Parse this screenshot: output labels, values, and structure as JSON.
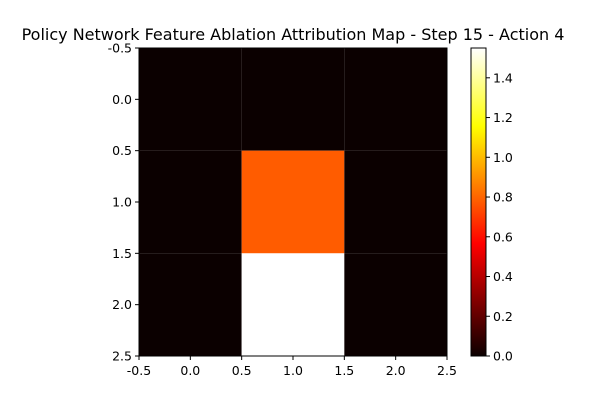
{
  "chart_data": {
    "type": "heatmap",
    "title": "Policy Network Feature Ablation Attribution Map - Step 15 - Action 4",
    "xlabel": "",
    "ylabel": "",
    "xlim": [
      -0.5,
      2.5
    ],
    "ylim": [
      2.5,
      -0.5
    ],
    "x_ticks": [
      "-0.5",
      "0.0",
      "0.5",
      "1.0",
      "1.5",
      "2.0",
      "2.5"
    ],
    "y_ticks": [
      "-0.5",
      "0.0",
      "0.5",
      "1.0",
      "1.5",
      "2.0",
      "2.5"
    ],
    "rows": 3,
    "cols": 3,
    "values": [
      [
        0.0,
        0.0,
        0.0
      ],
      [
        0.0,
        0.78,
        0.0
      ],
      [
        0.0,
        1.55,
        0.0
      ]
    ],
    "colormap": "hot",
    "colorbar": {
      "min": 0.0,
      "max": 1.55,
      "ticks": [
        "0.0",
        "0.2",
        "0.4",
        "0.6",
        "0.8",
        "1.0",
        "1.2",
        "1.4"
      ]
    },
    "grid": false
  }
}
